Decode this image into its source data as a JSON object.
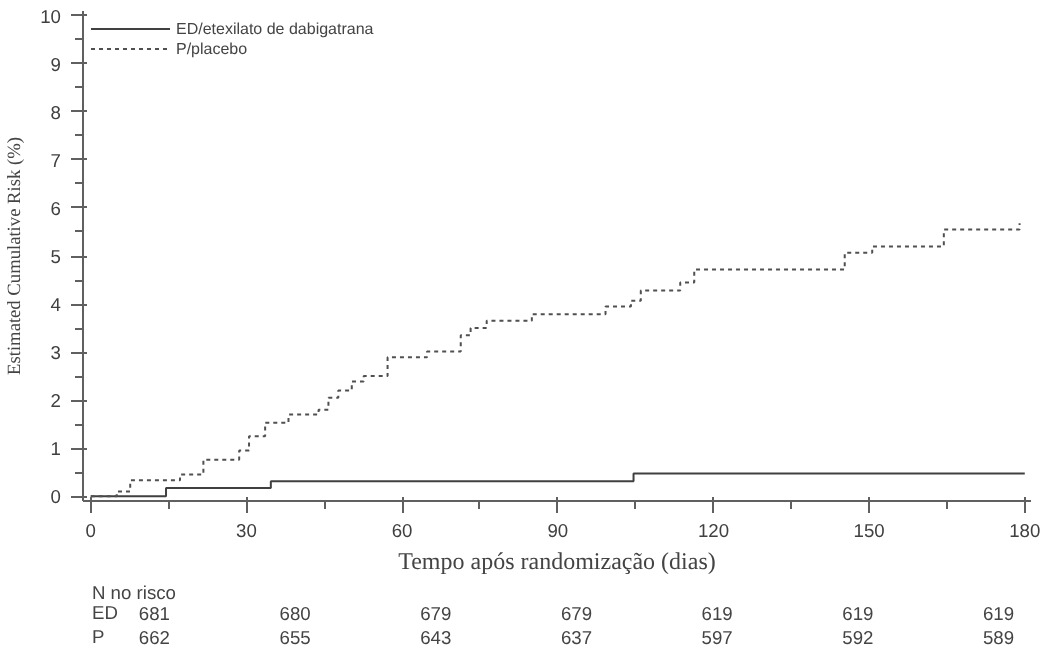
{
  "chart_data": {
    "type": "step",
    "xlabel": "Tempo após randomização (dias)",
    "ylabel": "Estimated Cumulative Risk (%)",
    "xlim": [
      -1.5,
      181.2
    ],
    "ylim": [
      -0.1,
      10.1
    ],
    "xticks": [
      0,
      30,
      60,
      90,
      120,
      150,
      180
    ],
    "yticks": [
      0,
      1,
      2,
      3,
      4,
      5,
      6,
      7,
      8,
      9,
      10
    ],
    "grid": false,
    "legend": "top left",
    "marker": "none",
    "series": [
      {
        "name": "ED/etexilato de dabigatrana",
        "color": "#404040",
        "line_style": "solid",
        "x": [
          0,
          14.5,
          34.7,
          104.6,
          180
        ],
        "values": [
          0,
          0.17,
          0.31,
          0.47,
          0.47
        ]
      },
      {
        "name": "P/placebo",
        "color": "#505050",
        "line_style": "dotted",
        "x": [
          0,
          5,
          7.6,
          17.2,
          21.7,
          28.6,
          30.5,
          33.6,
          38.1,
          43.9,
          45.8,
          47.7,
          50.3,
          52.6,
          57.2,
          64.8,
          71.3,
          73.2,
          76.3,
          85,
          99.2,
          104.1,
          106,
          113.6,
          116.3,
          145.3,
          150.6,
          164.4,
          179
        ],
        "values": [
          0,
          0.1,
          0.33,
          0.45,
          0.76,
          0.95,
          1.25,
          1.53,
          1.7,
          1.8,
          2.05,
          2.2,
          2.39,
          2.5,
          2.89,
          3.01,
          3.35,
          3.5,
          3.65,
          3.79,
          3.95,
          4.07,
          4.28,
          4.45,
          4.72,
          5.07,
          5.2,
          5.55,
          5.68
        ]
      }
    ],
    "annotations": [
      "N no risco",
      "ED",
      "681",
      "680",
      "679",
      "679",
      "619",
      "619",
      "619",
      "P",
      "662",
      "655",
      "643",
      "637",
      "597",
      "592",
      "589"
    ]
  }
}
